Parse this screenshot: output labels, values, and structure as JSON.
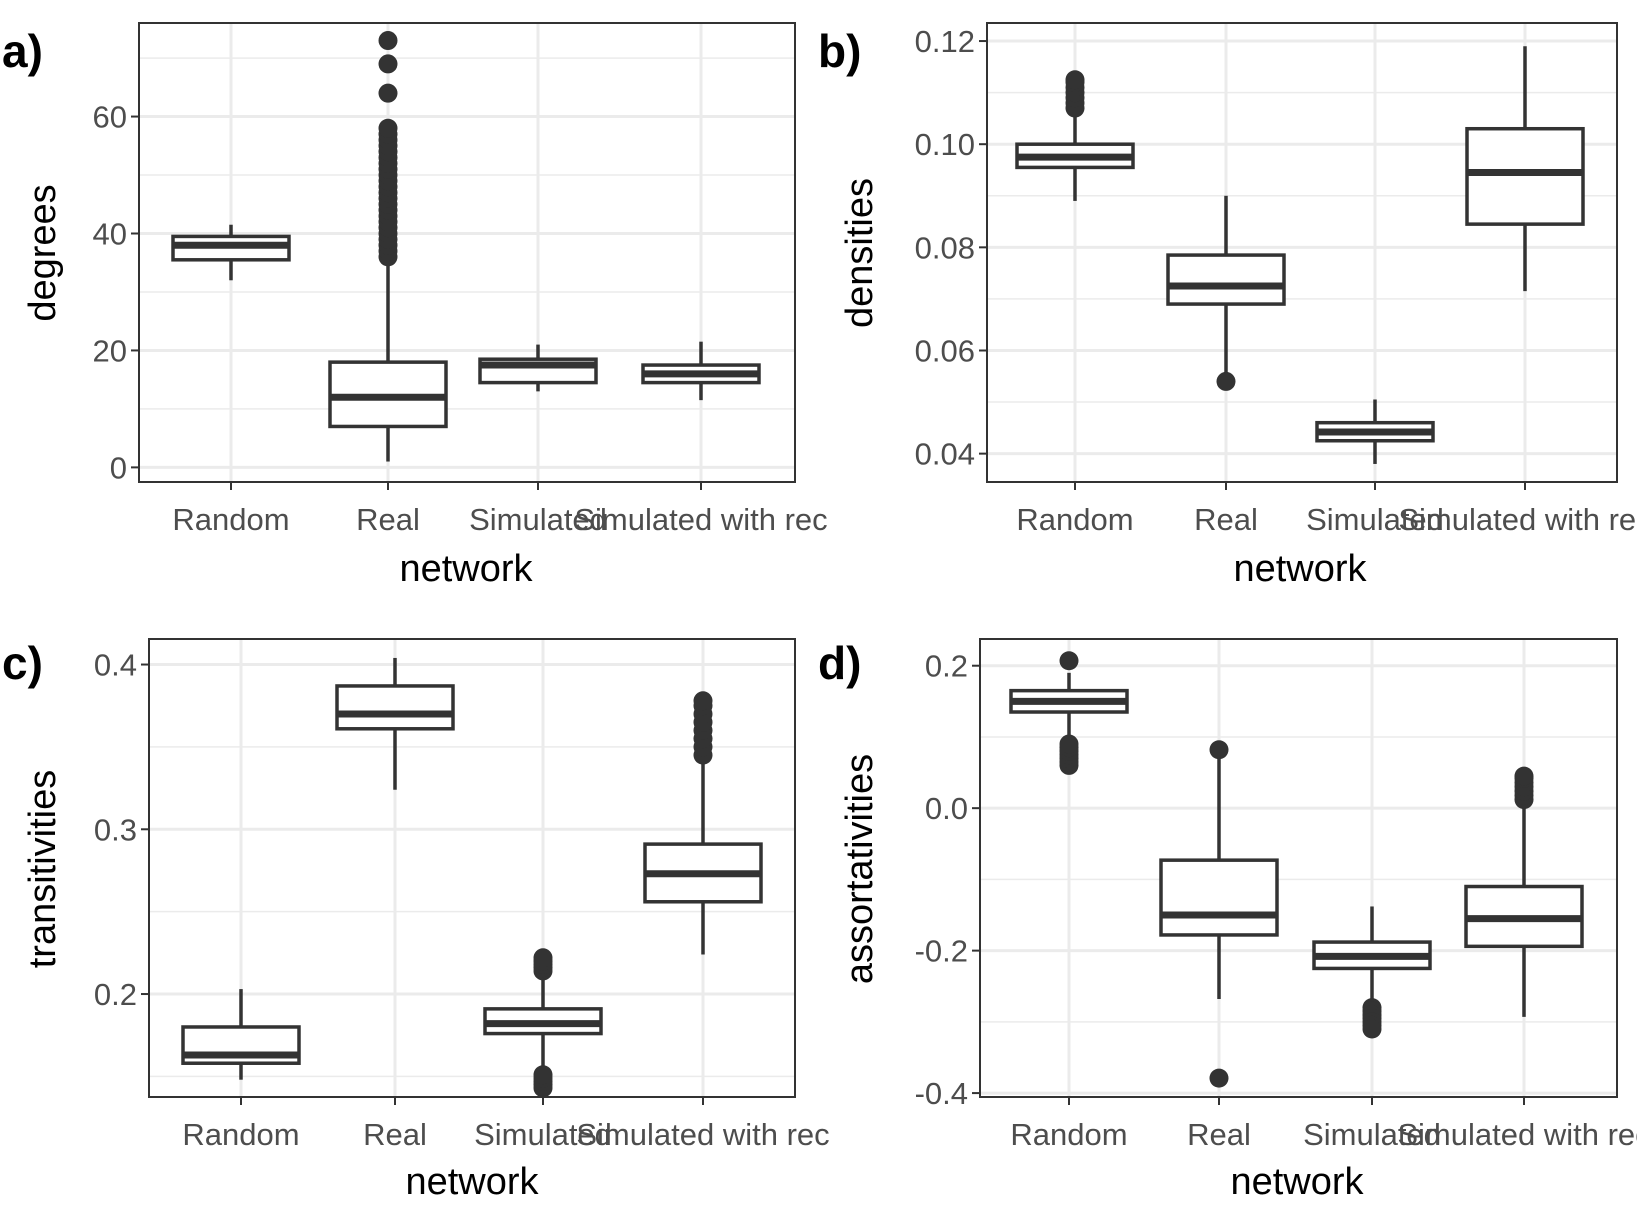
{
  "chart_data": [
    {
      "type": "boxplot",
      "panel_label": "a)",
      "xlabel": "network",
      "ylabel": "degrees",
      "categories": [
        "Random",
        "Real",
        "Simulated",
        "Simulated with rec"
      ],
      "ylim": [
        -2.5,
        76
      ],
      "yticks": [
        0,
        20,
        40,
        60
      ],
      "ytick_labels": [
        "0",
        "20",
        "40",
        "60"
      ],
      "grid": true,
      "boxes": [
        {
          "category": "Random",
          "q1": 35.5,
          "median": 38,
          "q3": 39.5,
          "whisker_low": 32,
          "whisker_high": 41.5,
          "outliers": []
        },
        {
          "category": "Real",
          "q1": 7,
          "median": 12,
          "q3": 18,
          "whisker_low": 1,
          "whisker_high": 35,
          "outliers": [
            36,
            37,
            38,
            39,
            40,
            41,
            42,
            43,
            44,
            45,
            46,
            47,
            48,
            49,
            50,
            51,
            52,
            53,
            54,
            55,
            56,
            57,
            58,
            64,
            69,
            73
          ]
        },
        {
          "category": "Simulated",
          "q1": 14.5,
          "median": 17.5,
          "q3": 18.5,
          "whisker_low": 13,
          "whisker_high": 21,
          "outliers": []
        },
        {
          "category": "Simulated with rec",
          "q1": 14.5,
          "median": 16,
          "q3": 17.5,
          "whisker_low": 11.5,
          "whisker_high": 21.5,
          "outliers": []
        }
      ]
    },
    {
      "type": "boxplot",
      "panel_label": "b)",
      "xlabel": "network",
      "ylabel": "densities",
      "categories": [
        "Random",
        "Real",
        "Simulated",
        "Simulated with rec"
      ],
      "ylim": [
        0.0345,
        0.1235
      ],
      "yticks": [
        0.04,
        0.06,
        0.08,
        0.1,
        0.12
      ],
      "ytick_labels": [
        "0.04",
        "0.06",
        "0.08",
        "0.10",
        "0.12"
      ],
      "grid": true,
      "boxes": [
        {
          "category": "Random",
          "q1": 0.0955,
          "median": 0.0975,
          "q3": 0.1,
          "whisker_low": 0.089,
          "whisker_high": 0.1065,
          "outliers": [
            0.107,
            0.108,
            0.109,
            0.11,
            0.111,
            0.112,
            0.1125
          ]
        },
        {
          "category": "Real",
          "q1": 0.069,
          "median": 0.0725,
          "q3": 0.0785,
          "whisker_low": 0.055,
          "whisker_high": 0.09,
          "outliers": [
            0.054
          ]
        },
        {
          "category": "Simulated",
          "q1": 0.0425,
          "median": 0.0442,
          "q3": 0.046,
          "whisker_low": 0.038,
          "whisker_high": 0.0505,
          "outliers": []
        },
        {
          "category": "Simulated with rec",
          "q1": 0.0845,
          "median": 0.0945,
          "q3": 0.103,
          "whisker_low": 0.0715,
          "whisker_high": 0.119,
          "outliers": []
        }
      ]
    },
    {
      "type": "boxplot",
      "panel_label": "c)",
      "xlabel": "network",
      "ylabel": "transitivities",
      "categories": [
        "Random",
        "Real",
        "Simulated",
        "Simulated with rec"
      ],
      "ylim": [
        0.1375,
        0.4155
      ],
      "yticks": [
        0.2,
        0.3,
        0.4
      ],
      "ytick_labels": [
        "0.2",
        "0.3",
        "0.4"
      ],
      "grid": true,
      "boxes": [
        {
          "category": "Random",
          "q1": 0.158,
          "median": 0.163,
          "q3": 0.18,
          "whisker_low": 0.148,
          "whisker_high": 0.203,
          "outliers": []
        },
        {
          "category": "Real",
          "q1": 0.361,
          "median": 0.37,
          "q3": 0.387,
          "whisker_low": 0.324,
          "whisker_high": 0.404,
          "outliers": []
        },
        {
          "category": "Simulated",
          "q1": 0.176,
          "median": 0.182,
          "q3": 0.191,
          "whisker_low": 0.155,
          "whisker_high": 0.212,
          "outliers": [
            0.143,
            0.145,
            0.147,
            0.149,
            0.151,
            0.214,
            0.216,
            0.218,
            0.22,
            0.222
          ]
        },
        {
          "category": "Simulated with rec",
          "q1": 0.256,
          "median": 0.273,
          "q3": 0.291,
          "whisker_low": 0.224,
          "whisker_high": 0.342,
          "outliers": [
            0.345,
            0.35,
            0.355,
            0.36,
            0.365,
            0.37,
            0.375,
            0.378
          ]
        }
      ]
    },
    {
      "type": "boxplot",
      "panel_label": "d)",
      "xlabel": "network",
      "ylabel": "assortativities",
      "categories": [
        "Random",
        "Real",
        "Simulated",
        "Simulated with rec"
      ],
      "ylim": [
        -0.4055,
        0.2375
      ],
      "yticks": [
        -0.4,
        -0.2,
        0.0,
        0.2
      ],
      "ytick_labels": [
        "-0.4",
        "-0.2",
        "0.0",
        "0.2"
      ],
      "grid": true,
      "boxes": [
        {
          "category": "Random",
          "q1": 0.135,
          "median": 0.15,
          "q3": 0.165,
          "whisker_low": 0.1,
          "whisker_high": 0.19,
          "outliers": [
            0.06,
            0.065,
            0.07,
            0.075,
            0.08,
            0.085,
            0.09,
            0.207
          ]
        },
        {
          "category": "Real",
          "q1": -0.178,
          "median": -0.15,
          "q3": -0.073,
          "whisker_low": -0.268,
          "whisker_high": 0.075,
          "outliers": [
            0.082,
            -0.379
          ]
        },
        {
          "category": "Simulated",
          "q1": -0.225,
          "median": -0.208,
          "q3": -0.188,
          "whisker_low": -0.275,
          "whisker_high": -0.138,
          "outliers": [
            -0.28,
            -0.285,
            -0.29,
            -0.295,
            -0.3,
            -0.305,
            -0.31
          ]
        },
        {
          "category": "Simulated with rec",
          "q1": -0.194,
          "median": -0.155,
          "q3": -0.11,
          "whisker_low": -0.293,
          "whisker_high": 0.008,
          "outliers": [
            0.012,
            0.018,
            0.024,
            0.03,
            0.036,
            0.042,
            0.045
          ]
        }
      ]
    }
  ]
}
